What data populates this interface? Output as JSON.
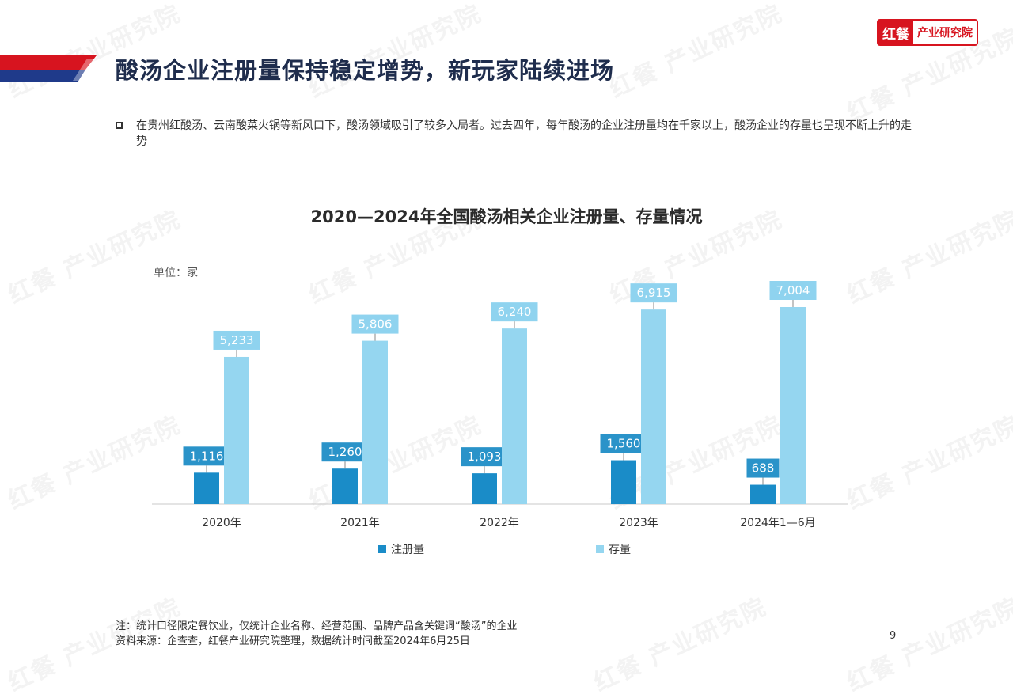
{
  "logo": {
    "mark": "红餐",
    "text": "产业研究院"
  },
  "watermark_text": "红餐 产业研究院",
  "title": "酸汤企业注册量保持稳定增势，新玩家陆续进场",
  "bullet": "在贵州红酸汤、云南酸菜火锅等新风口下，酸汤领域吸引了较多入局者。过去四年，每年酸汤的企业注册量均在千家以上，酸汤企业的存量也呈现不断上升的走势",
  "colors": {
    "registration": "#1a8cc8",
    "stock": "#95d6f0",
    "accent_red": "#d7141f",
    "navy": "#1f3a8a"
  },
  "chart_data": {
    "type": "bar",
    "title": "2020—2024年全国酸汤相关企业注册量、存量情况",
    "unit": "单位：家",
    "categories": [
      "2020年",
      "2021年",
      "2022年",
      "2023年",
      "2024年1—6月"
    ],
    "series": [
      {
        "name": "注册量",
        "values": [
          1116,
          1260,
          1093,
          1560,
          688
        ],
        "labels": [
          "1,116",
          "1,260",
          "1,093",
          "1,560",
          "688"
        ]
      },
      {
        "name": "存量",
        "values": [
          5233,
          5806,
          6240,
          6915,
          7004
        ],
        "labels": [
          "5,233",
          "5,806",
          "6,240",
          "6,915",
          "7,004"
        ]
      }
    ],
    "ylim": [
      0,
      7004
    ],
    "legend_position": "bottom"
  },
  "notes": {
    "note": "注：统计口径限定餐饮业，仅统计企业名称、经营范围、品牌产品含关键词“酸汤”的企业",
    "source": "资料来源：企查查，红餐产业研究院整理，数据统计时间截至2024年6月25日"
  },
  "page_number": "9"
}
